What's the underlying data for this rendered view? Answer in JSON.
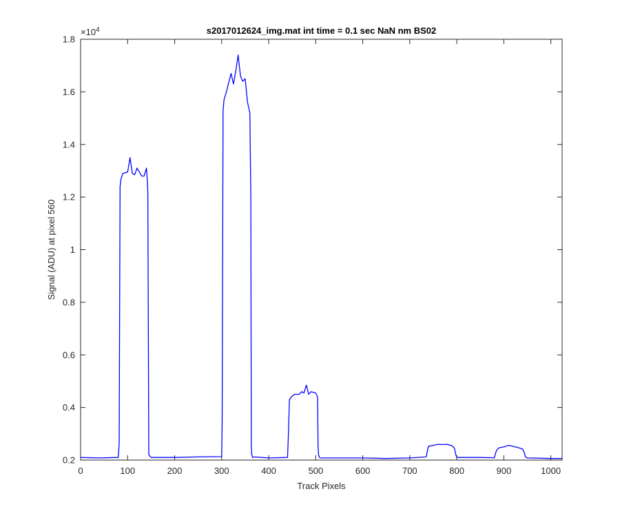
{
  "chart_data": {
    "type": "line",
    "title": "s2017012624_img.mat int time = 0.1 sec  NaN nm BS02",
    "xlabel": "Track Pixels",
    "ylabel": "Signal (ADU) at pixel 560",
    "xlim": [
      0,
      1024
    ],
    "ylim": [
      2000,
      18000
    ],
    "y_exponent_label": "×10",
    "y_exponent_power": "4",
    "x_ticks": [
      0,
      100,
      200,
      300,
      400,
      500,
      600,
      700,
      800,
      900,
      1000
    ],
    "x_tick_labels": [
      "0",
      "100",
      "200",
      "300",
      "400",
      "500",
      "600",
      "700",
      "800",
      "900",
      "1000"
    ],
    "y_ticks": [
      2000,
      4000,
      6000,
      8000,
      10000,
      12000,
      14000,
      16000,
      18000
    ],
    "y_tick_labels": [
      "0.2",
      "0.4",
      "0.6",
      "0.8",
      "1",
      "1.2",
      "1.4",
      "1.6",
      "1.8"
    ],
    "grid": false,
    "legend": "none",
    "series": [
      {
        "color": "#0000ff",
        "x": [
          0,
          40,
          80,
          82,
          84,
          86,
          90,
          100,
          105,
          110,
          115,
          120,
          125,
          130,
          135,
          140,
          142,
          143,
          145,
          150,
          200,
          250,
          300,
          301,
          303,
          305,
          310,
          320,
          325,
          330,
          335,
          340,
          345,
          350,
          355,
          360,
          362,
          363,
          364,
          366,
          370,
          400,
          440,
          442,
          444,
          448,
          455,
          465,
          470,
          475,
          480,
          485,
          490,
          500,
          504,
          505,
          506,
          508,
          510,
          550,
          600,
          650,
          700,
          735,
          738,
          740,
          750,
          760,
          770,
          780,
          790,
          795,
          798,
          800,
          850,
          880,
          883,
          886,
          890,
          900,
          910,
          920,
          930,
          940,
          943,
          946,
          950,
          1000,
          1024
        ],
        "y": [
          2100,
          2080,
          2100,
          2600,
          12400,
          12700,
          12900,
          12950,
          13500,
          12900,
          12850,
          13100,
          12950,
          12800,
          12800,
          13100,
          12600,
          12200,
          2200,
          2100,
          2100,
          2120,
          2130,
          3500,
          15300,
          15700,
          16000,
          16700,
          16300,
          16800,
          17400,
          16600,
          16400,
          16500,
          15600,
          15200,
          12000,
          2500,
          2200,
          2100,
          2120,
          2080,
          2100,
          3000,
          4300,
          4400,
          4500,
          4500,
          4600,
          4550,
          4850,
          4500,
          4600,
          4550,
          4400,
          2500,
          2200,
          2100,
          2080,
          2080,
          2080,
          2060,
          2080,
          2120,
          2400,
          2530,
          2560,
          2600,
          2590,
          2600,
          2540,
          2450,
          2200,
          2100,
          2100,
          2090,
          2300,
          2400,
          2470,
          2500,
          2560,
          2520,
          2480,
          2420,
          2300,
          2120,
          2080,
          2060,
          2060
        ]
      }
    ]
  }
}
